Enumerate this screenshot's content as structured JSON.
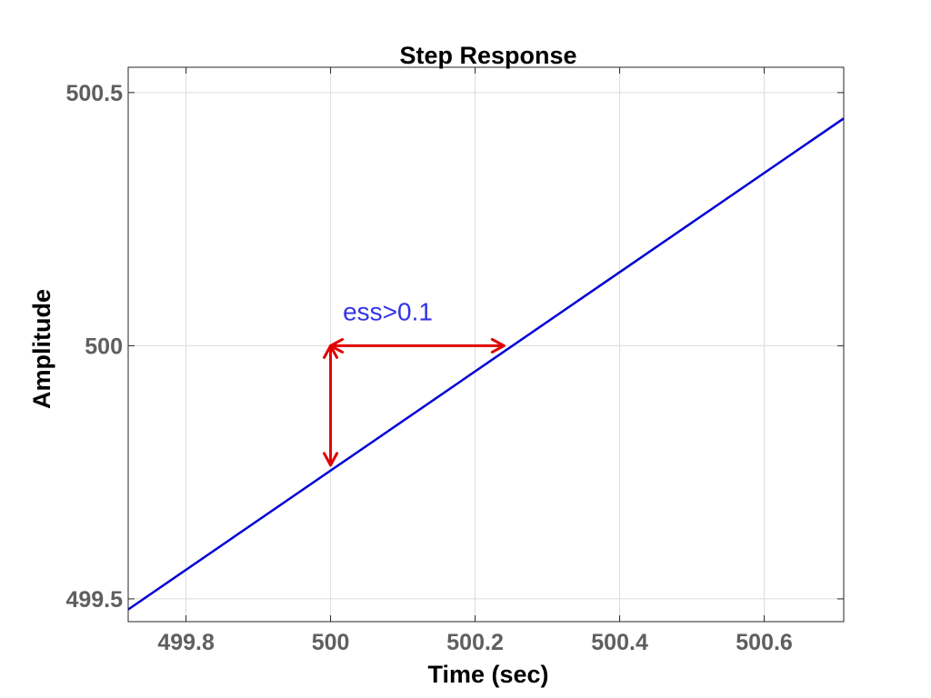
{
  "chart_data": {
    "type": "line",
    "title": "Step Response",
    "xlabel": "Time (sec)",
    "ylabel": "Amplitude",
    "xlim": [
      499.72,
      500.71
    ],
    "ylim": [
      499.455,
      500.55
    ],
    "xticks": [
      499.8,
      500,
      500.2,
      500.4,
      500.6
    ],
    "xtick_labels": [
      "499.8",
      "500",
      "500.2",
      "500.4",
      "500.6"
    ],
    "yticks": [
      499.5,
      500,
      500.5
    ],
    "ytick_labels": [
      "499.5",
      "500",
      "500.5"
    ],
    "grid": true,
    "series": [
      {
        "color": "#0000d6",
        "x": [
          499.72,
          500.71
        ],
        "y": [
          499.479,
          500.449
        ]
      }
    ],
    "annotations": [
      {
        "kind": "double-arrow",
        "color": "#e00000",
        "from": [
          500.0,
          500.0
        ],
        "to": [
          500.24,
          500.0
        ]
      },
      {
        "kind": "double-arrow",
        "color": "#e00000",
        "from": [
          500.0,
          500.0
        ],
        "to": [
          500.0,
          499.764
        ]
      },
      {
        "kind": "text",
        "text": "ess>0.1",
        "color": "#3333e6",
        "at": [
          500.017,
          500.05
        ]
      }
    ]
  }
}
